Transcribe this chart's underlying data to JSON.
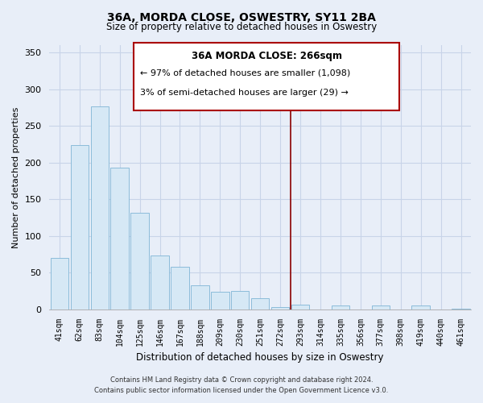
{
  "title": "36A, MORDA CLOSE, OSWESTRY, SY11 2BA",
  "subtitle": "Size of property relative to detached houses in Oswestry",
  "xlabel": "Distribution of detached houses by size in Oswestry",
  "ylabel": "Number of detached properties",
  "bar_labels": [
    "41sqm",
    "62sqm",
    "83sqm",
    "104sqm",
    "125sqm",
    "146sqm",
    "167sqm",
    "188sqm",
    "209sqm",
    "230sqm",
    "251sqm",
    "272sqm",
    "293sqm",
    "314sqm",
    "335sqm",
    "356sqm",
    "377sqm",
    "398sqm",
    "419sqm",
    "440sqm",
    "461sqm"
  ],
  "bar_values": [
    70,
    224,
    277,
    193,
    132,
    73,
    58,
    33,
    24,
    25,
    15,
    3,
    6,
    0,
    5,
    0,
    5,
    0,
    5,
    0,
    1
  ],
  "bar_color": "#d6e8f5",
  "bar_edge_color": "#7fb5d5",
  "vline_color": "#8b0000",
  "ylim": [
    0,
    360
  ],
  "yticks": [
    0,
    50,
    100,
    150,
    200,
    250,
    300,
    350
  ],
  "annotation_title": "36A MORDA CLOSE: 266sqm",
  "annotation_line1": "← 97% of detached houses are smaller (1,098)",
  "annotation_line2": "3% of semi-detached houses are larger (29) →",
  "footer_line1": "Contains HM Land Registry data © Crown copyright and database right 2024.",
  "footer_line2": "Contains public sector information licensed under the Open Government Licence v3.0.",
  "background_color": "#e8eef8",
  "grid_color": "#c8d4e8"
}
